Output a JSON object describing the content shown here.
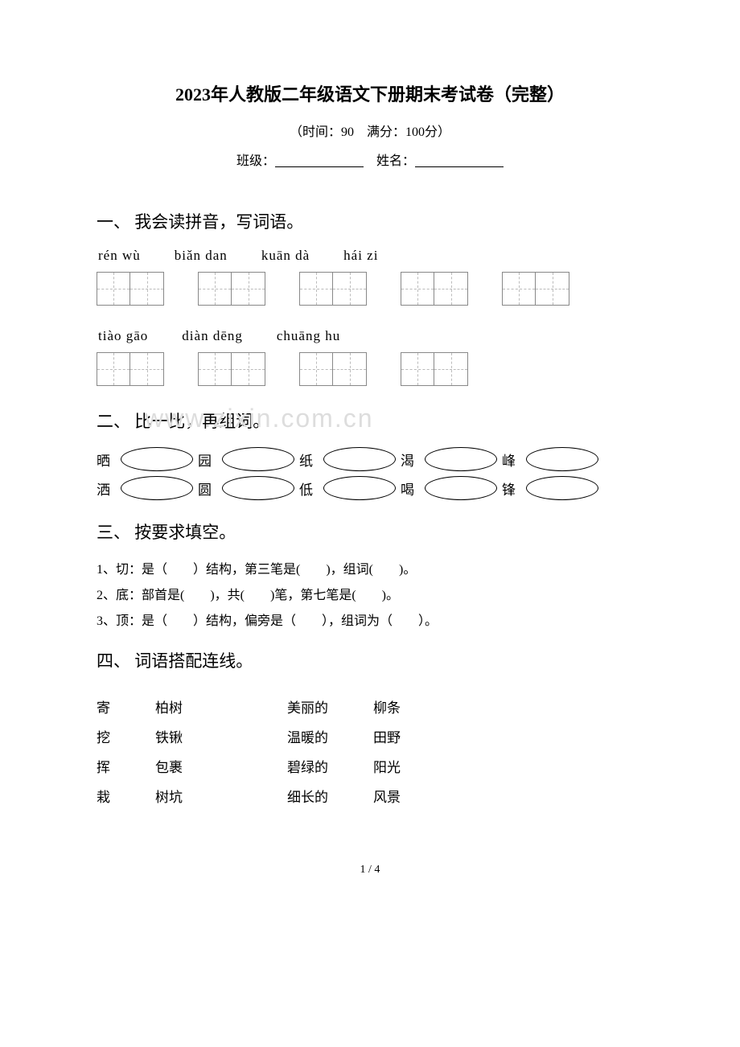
{
  "header": {
    "title": "2023年人教版二年级语文下册期末考试卷（完整）",
    "time_score": "（时间：90　满分：100分）",
    "class_label": "班级：",
    "name_label": "姓名："
  },
  "section1": {
    "heading": "一、 我会读拼音，写词语。",
    "row1": [
      "rén  wù",
      "biǎn dan",
      "kuān dà",
      "hái  zi"
    ],
    "row2": [
      "tiào  gāo",
      "diàn dēng",
      "chuāng hu"
    ]
  },
  "section2": {
    "heading": "二、 比一比，再组词。",
    "watermark": "www.zixin.com.cn",
    "rows": [
      [
        "晒",
        "园",
        "纸",
        "渴",
        "峰"
      ],
      [
        "洒",
        "圆",
        "低",
        "喝",
        "锋"
      ]
    ]
  },
  "section3": {
    "heading": "三、 按要求填空。",
    "lines": [
      "1、切：是（　　）结构，第三笔是(　　)，组词(　　)。",
      "2、底：部首是(　　)，共(　　)笔，第七笔是(　　)。",
      "3、顶：是（　　）结构，偏旁是（　　），组词为（　　）。"
    ]
  },
  "section4": {
    "heading": "四、 词语搭配连线。",
    "left_a": [
      "寄",
      "挖",
      "挥",
      "栽"
    ],
    "left_b": [
      "柏树",
      "铁锹",
      "包裹",
      "树坑"
    ],
    "right_a": [
      "美丽的",
      "温暖的",
      "碧绿的",
      "细长的"
    ],
    "right_b": [
      "柳条",
      "田野",
      "阳光",
      "风景"
    ]
  },
  "footer": {
    "page": "1 / 4"
  }
}
